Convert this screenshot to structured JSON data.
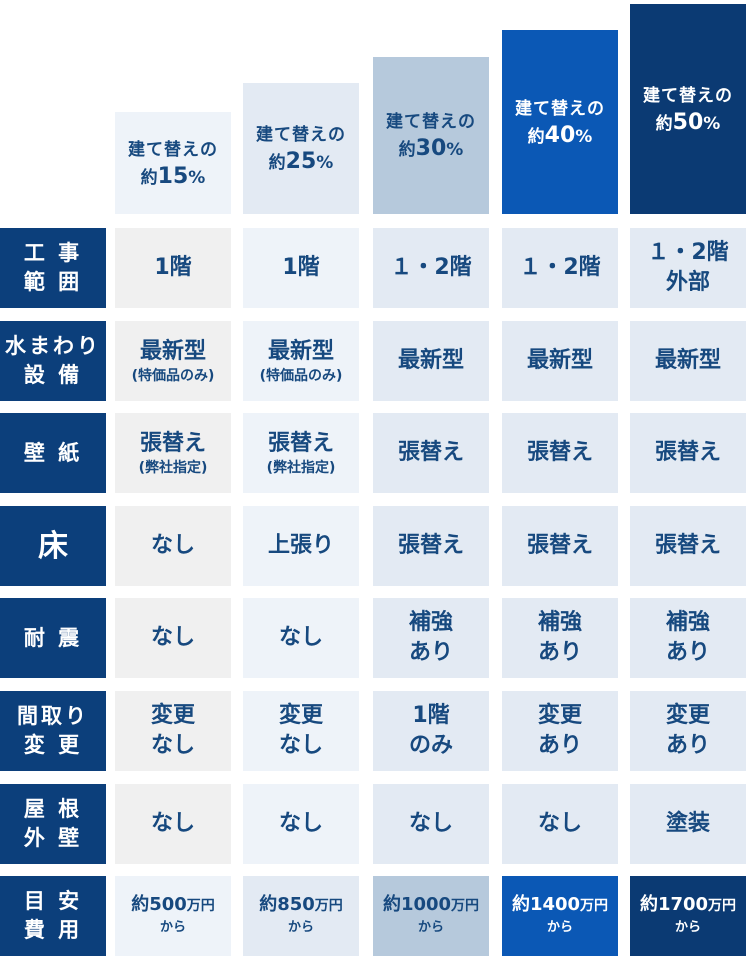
{
  "headers": [
    {
      "line1": "建て替えの",
      "prefix": "約",
      "pct": "15",
      "unit": "%"
    },
    {
      "line1": "建て替えの",
      "prefix": "約",
      "pct": "25",
      "unit": "%"
    },
    {
      "line1": "建て替えの",
      "prefix": "約",
      "pct": "30",
      "unit": "%"
    },
    {
      "line1": "建て替えの",
      "prefix": "約",
      "pct": "40",
      "unit": "%"
    },
    {
      "line1": "建て替えの",
      "prefix": "約",
      "pct": "50",
      "unit": "%"
    }
  ],
  "rows": [
    {
      "label": [
        "工 事",
        "範 囲"
      ],
      "cells": [
        {
          "main": [
            "1階"
          ]
        },
        {
          "main": [
            "1階"
          ]
        },
        {
          "main": [
            "１・2階"
          ]
        },
        {
          "main": [
            "１・2階"
          ]
        },
        {
          "main": [
            "１・2階",
            "外部"
          ]
        }
      ]
    },
    {
      "label": [
        "水まわり",
        "設 備"
      ],
      "cells": [
        {
          "main": [
            "最新型"
          ],
          "sub": "(特価品のみ)"
        },
        {
          "main": [
            "最新型"
          ],
          "sub": "(特価品のみ)"
        },
        {
          "main": [
            "最新型"
          ]
        },
        {
          "main": [
            "最新型"
          ]
        },
        {
          "main": [
            "最新型"
          ]
        }
      ]
    },
    {
      "label": [
        "壁 紙"
      ],
      "cells": [
        {
          "main": [
            "張替え"
          ],
          "sub": "(弊社指定)"
        },
        {
          "main": [
            "張替え"
          ],
          "sub": "(弊社指定)"
        },
        {
          "main": [
            "張替え"
          ]
        },
        {
          "main": [
            "張替え"
          ]
        },
        {
          "main": [
            "張替え"
          ]
        }
      ]
    },
    {
      "label": [
        "床"
      ],
      "big": true,
      "cells": [
        {
          "main": [
            "なし"
          ]
        },
        {
          "main": [
            "上張り"
          ]
        },
        {
          "main": [
            "張替え"
          ]
        },
        {
          "main": [
            "張替え"
          ]
        },
        {
          "main": [
            "張替え"
          ]
        }
      ]
    },
    {
      "label": [
        "耐 震"
      ],
      "cells": [
        {
          "main": [
            "なし"
          ]
        },
        {
          "main": [
            "なし"
          ]
        },
        {
          "main": [
            "補強",
            "あり"
          ]
        },
        {
          "main": [
            "補強",
            "あり"
          ]
        },
        {
          "main": [
            "補強",
            "あり"
          ]
        }
      ]
    },
    {
      "label": [
        "間取り",
        "変 更"
      ],
      "cells": [
        {
          "main": [
            "変更",
            "なし"
          ]
        },
        {
          "main": [
            "変更",
            "なし"
          ]
        },
        {
          "main": [
            "1階",
            "のみ"
          ]
        },
        {
          "main": [
            "変更",
            "あり"
          ]
        },
        {
          "main": [
            "変更",
            "あり"
          ]
        }
      ]
    },
    {
      "label": [
        "屋 根",
        "外 壁"
      ],
      "cells": [
        {
          "main": [
            "なし"
          ]
        },
        {
          "main": [
            "なし"
          ]
        },
        {
          "main": [
            "なし"
          ]
        },
        {
          "main": [
            "なし"
          ]
        },
        {
          "main": [
            "塗装"
          ]
        }
      ]
    },
    {
      "label": [
        "目 安",
        "費 用"
      ],
      "price": true,
      "cells": [
        {
          "pre": "約",
          "num": "500",
          "unit": "万円",
          "from": "から"
        },
        {
          "pre": "約",
          "num": "850",
          "unit": "万円",
          "from": "から"
        },
        {
          "pre": "約",
          "num": "1000",
          "unit": "万円",
          "from": "から"
        },
        {
          "pre": "約",
          "num": "1400",
          "unit": "万円",
          "from": "から"
        },
        {
          "pre": "約",
          "num": "1700",
          "unit": "万円",
          "from": "から"
        }
      ]
    }
  ]
}
